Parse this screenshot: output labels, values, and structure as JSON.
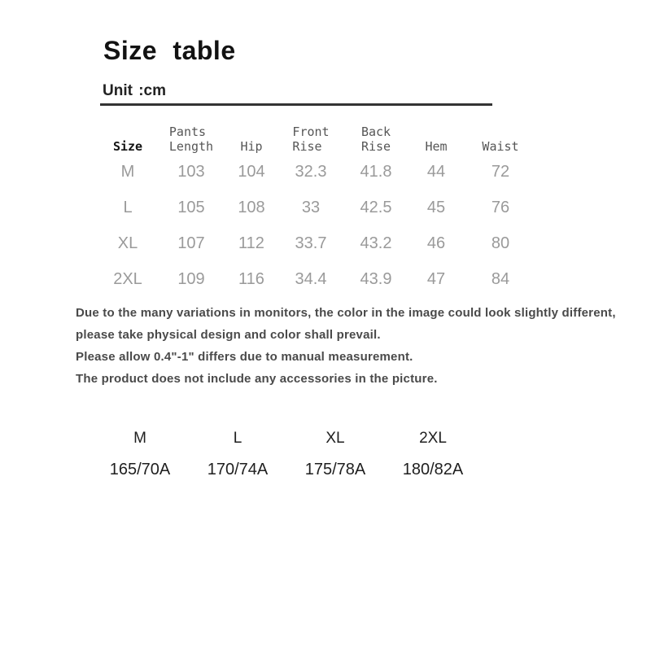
{
  "page": {
    "title": "Size table",
    "unit_label": "Unit :cm"
  },
  "size_table": {
    "columns": [
      "Size",
      "Pants\nLength",
      "Hip",
      "Front\nRise",
      "Back\nRise",
      "Hem",
      "Waist"
    ],
    "rows": [
      {
        "size": "M",
        "values": [
          "103",
          "104",
          "32.3",
          "41.8",
          "44",
          "72"
        ]
      },
      {
        "size": "L",
        "values": [
          "105",
          "108",
          "33",
          "42.5",
          "45",
          "76"
        ]
      },
      {
        "size": "XL",
        "values": [
          "107",
          "112",
          "33.7",
          "43.2",
          "46",
          "80"
        ]
      },
      {
        "size": "2XL",
        "values": [
          "109",
          "116",
          "34.4",
          "43.9",
          "47",
          "84"
        ]
      }
    ]
  },
  "notes": [
    "Due to the many variations in monitors, the color in the image could look slightly different,",
    "please take physical design and color shall prevail.",
    "Please allow 0.4\"-1\" differs due to manual measurement.",
    "The product does not include any accessories in the picture."
  ],
  "model_reference": [
    {
      "size": "M",
      "spec": "165/70A"
    },
    {
      "size": "L",
      "spec": "170/74A"
    },
    {
      "size": "XL",
      "spec": "175/78A"
    },
    {
      "size": "2XL",
      "spec": "180/82A"
    }
  ],
  "colors": {
    "title_text": "#121212",
    "header_text": "#565656",
    "data_text": "#9a9a9a",
    "note_text": "#4a4a4a",
    "rule": "#333333",
    "background": "#ffffff"
  }
}
